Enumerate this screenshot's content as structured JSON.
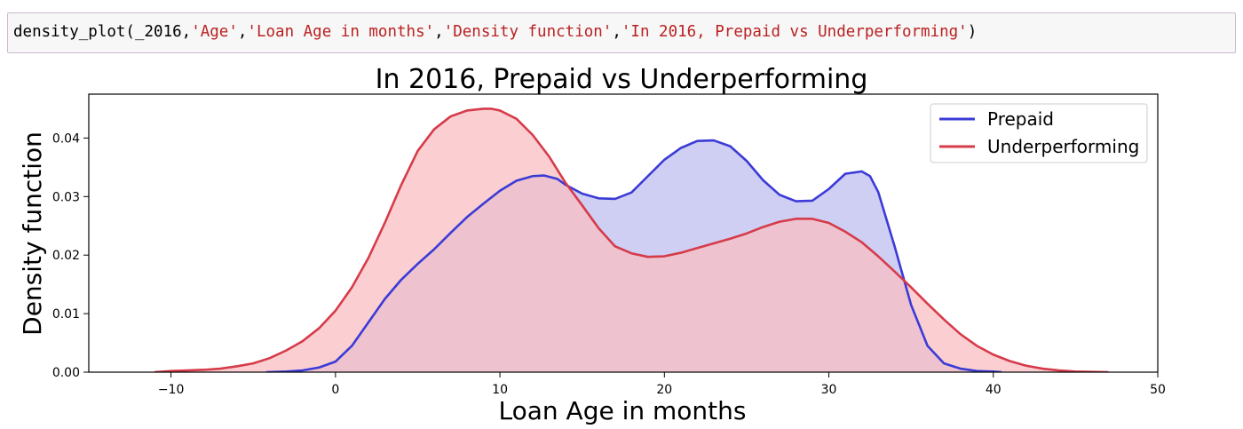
{
  "code_cell": {
    "tokens": [
      {
        "text": "density_plot(_2016,",
        "kind": "txt"
      },
      {
        "text": "'Age'",
        "kind": "str"
      },
      {
        "text": ",",
        "kind": "txt"
      },
      {
        "text": "'Loan Age in months'",
        "kind": "str"
      },
      {
        "text": ",",
        "kind": "txt"
      },
      {
        "text": "'Density function'",
        "kind": "str"
      },
      {
        "text": ",",
        "kind": "txt"
      },
      {
        "text": "'In 2016, Prepaid vs Underperforming'",
        "kind": "str"
      },
      {
        "text": ")",
        "kind": "txt"
      }
    ]
  },
  "colors": {
    "prepaid_line": "#3b3bd6",
    "prepaid_fill": "#bcbcf0",
    "underperforming_line": "#d63b4a",
    "underperforming_fill": "#f9bcc0",
    "overlap_fill": "#c88dc2",
    "axes": "#000000"
  },
  "chart_data": {
    "type": "area",
    "title": "In 2016, Prepaid vs Underperforming",
    "xlabel": "Loan Age in months",
    "ylabel": "Density function",
    "xlim": [
      -15,
      50
    ],
    "ylim": [
      0,
      0.0475
    ],
    "xticks": [
      -10,
      0,
      10,
      20,
      30,
      40,
      50
    ],
    "yticks": [
      0.0,
      0.01,
      0.02,
      0.03,
      0.04
    ],
    "ytick_labels": [
      "0.00",
      "0.01",
      "0.02",
      "0.03",
      "0.04"
    ],
    "grid": false,
    "legend_position": "top-right",
    "series": [
      {
        "name": "Prepaid",
        "x": [
          -4.2,
          -3,
          -2,
          -1,
          0,
          1,
          2,
          3,
          4,
          5,
          6,
          7,
          8,
          9,
          10,
          11,
          12,
          12.7,
          13.5,
          14,
          15,
          16,
          17,
          18,
          19,
          20,
          21,
          22,
          23,
          24,
          25,
          26,
          27,
          28,
          29,
          30,
          31,
          32,
          32.5,
          33,
          34,
          35,
          36,
          37,
          38,
          39,
          40,
          40.5
        ],
        "y": [
          0.0,
          0.0001,
          0.0003,
          0.0008,
          0.0018,
          0.0045,
          0.0085,
          0.0125,
          0.0158,
          0.0185,
          0.021,
          0.0238,
          0.0265,
          0.0288,
          0.031,
          0.0327,
          0.0335,
          0.0336,
          0.033,
          0.032,
          0.0305,
          0.0297,
          0.0296,
          0.0307,
          0.0335,
          0.0363,
          0.0383,
          0.0395,
          0.0396,
          0.0386,
          0.0361,
          0.0328,
          0.0303,
          0.0292,
          0.0293,
          0.0313,
          0.0339,
          0.0343,
          0.0335,
          0.0308,
          0.0215,
          0.0115,
          0.0045,
          0.0015,
          0.0006,
          0.0002,
          0.0001,
          0.0
        ]
      },
      {
        "name": "Underperforming",
        "x": [
          -11,
          -10,
          -9,
          -8,
          -7,
          -6,
          -5,
          -4,
          -3,
          -2,
          -1,
          0,
          1,
          2,
          3,
          4,
          5,
          6,
          7,
          8,
          9,
          9.5,
          10,
          11,
          12,
          13,
          14,
          15,
          16,
          17,
          18,
          19,
          20,
          21,
          22,
          23,
          24,
          25,
          26,
          27,
          28,
          29,
          30,
          31,
          32,
          33,
          34,
          35,
          36,
          37,
          38,
          39,
          40,
          41,
          42,
          43,
          44,
          45,
          46,
          47
        ],
        "y": [
          0.0,
          0.0002,
          0.0003,
          0.0004,
          0.0006,
          0.001,
          0.0015,
          0.0024,
          0.0037,
          0.0053,
          0.0075,
          0.0105,
          0.0145,
          0.0195,
          0.0255,
          0.032,
          0.0378,
          0.0415,
          0.0437,
          0.0447,
          0.045,
          0.045,
          0.0447,
          0.0433,
          0.0405,
          0.0368,
          0.0323,
          0.0285,
          0.0246,
          0.0215,
          0.0203,
          0.0197,
          0.0198,
          0.0204,
          0.0212,
          0.022,
          0.0228,
          0.0237,
          0.0248,
          0.0257,
          0.0262,
          0.0262,
          0.0255,
          0.024,
          0.0222,
          0.0198,
          0.0172,
          0.0145,
          0.0117,
          0.009,
          0.0065,
          0.0045,
          0.003,
          0.0019,
          0.0011,
          0.0006,
          0.0003,
          0.0001,
          5e-05,
          0.0
        ]
      }
    ]
  }
}
